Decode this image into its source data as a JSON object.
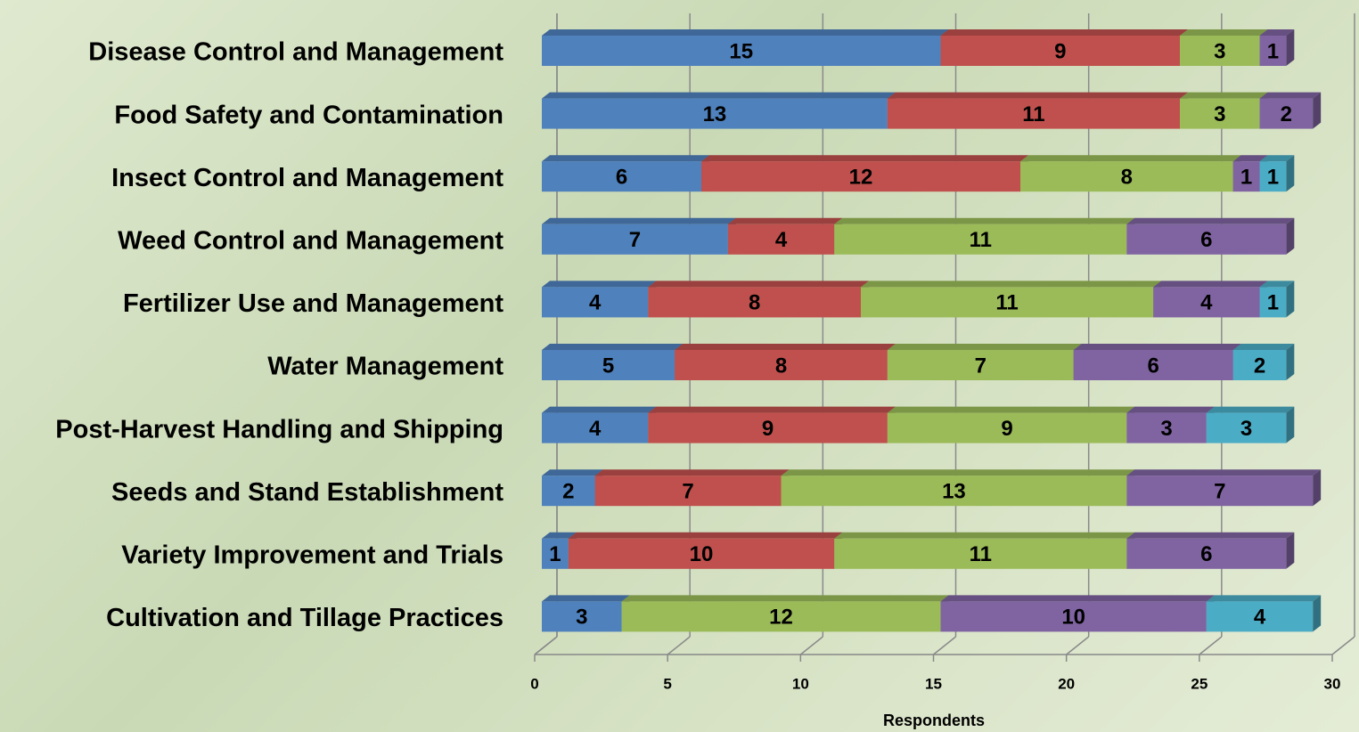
{
  "chart_data": {
    "type": "bar",
    "orientation": "horizontal",
    "stacked": true,
    "categories": [
      "Disease Control and Management",
      "Food Safety and Contamination",
      "Insect Control and Management",
      "Weed Control and Management",
      "Fertilizer Use and Management",
      "Water Management",
      "Post-Harvest Handling and Shipping",
      "Seeds and Stand Establishment",
      "Variety Improvement and Trials",
      "Cultivation and Tillage Practices"
    ],
    "series": [
      {
        "color": "#4f81bd",
        "values": [
          15,
          13,
          6,
          7,
          4,
          5,
          4,
          2,
          1,
          3
        ]
      },
      {
        "color": "#c0504d",
        "values": [
          9,
          11,
          12,
          4,
          8,
          8,
          9,
          7,
          10,
          null
        ]
      },
      {
        "color": "#9bbb59",
        "values": [
          3,
          3,
          8,
          11,
          11,
          7,
          9,
          13,
          11,
          12
        ]
      },
      {
        "color": "#8064a2",
        "values": [
          1,
          2,
          1,
          6,
          4,
          6,
          3,
          7,
          6,
          10
        ]
      },
      {
        "color": "#4bacc6",
        "values": [
          null,
          null,
          1,
          null,
          1,
          2,
          3,
          null,
          null,
          4
        ]
      }
    ],
    "xlabel": "Respondents",
    "xlim": [
      0,
      30
    ],
    "xticks": [
      0,
      5,
      10,
      15,
      20,
      25,
      30
    ],
    "grid": true
  }
}
